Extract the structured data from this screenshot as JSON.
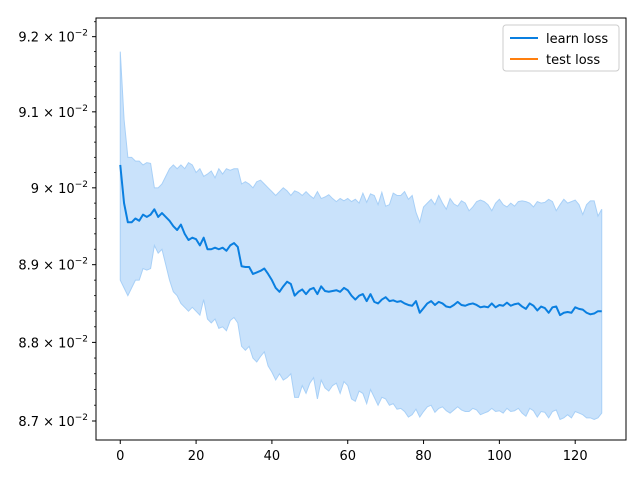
{
  "chart_data": {
    "type": "line",
    "title": "",
    "xlabel": "",
    "ylabel": "",
    "xlim": [
      -6.4,
      133.4
    ],
    "ylim": [
      0.08676,
      0.09225
    ],
    "xticks": [
      0,
      20,
      40,
      60,
      80,
      100,
      120
    ],
    "xtick_labels": [
      "0",
      "20",
      "40",
      "60",
      "80",
      "100",
      "120"
    ],
    "yticks": [
      {
        "value": 0.087,
        "mantissa": "8.7",
        "base": "10",
        "exp": "−2"
      },
      {
        "value": 0.088,
        "mantissa": "8.8",
        "base": "10",
        "exp": "−2"
      },
      {
        "value": 0.089,
        "mantissa": "8.9",
        "base": "10",
        "exp": "−2"
      },
      {
        "value": 0.09,
        "mantissa": "9",
        "base": "10",
        "exp": "−2"
      },
      {
        "value": 0.091,
        "mantissa": "9.1",
        "base": "10",
        "exp": "−2"
      },
      {
        "value": 0.092,
        "mantissa": "9.2",
        "base": "10",
        "exp": "−2"
      }
    ],
    "grid": false,
    "legend": {
      "placement": "top-right",
      "entries": [
        {
          "label": "learn loss",
          "color": "#0a7fe0"
        },
        {
          "label": "test loss",
          "color": "#ff7f0e"
        }
      ]
    },
    "series": [
      {
        "name": "learn loss",
        "color": "#0a7fe0",
        "band_color": "#c9e2fb",
        "band_edge_color": "#a8d0f7",
        "x": [
          0,
          1,
          2,
          3,
          4,
          5,
          6,
          7,
          8,
          9,
          10,
          11,
          12,
          13,
          14,
          15,
          16,
          17,
          18,
          19,
          20,
          21,
          22,
          23,
          24,
          25,
          26,
          27,
          28,
          29,
          30,
          31,
          32,
          33,
          34,
          35,
          36,
          37,
          38,
          39,
          40,
          41,
          42,
          43,
          44,
          45,
          46,
          47,
          48,
          49,
          50,
          51,
          52,
          53,
          54,
          55,
          56,
          57,
          58,
          59,
          60,
          61,
          62,
          63,
          64,
          65,
          66,
          67,
          68,
          69,
          70,
          71,
          72,
          73,
          74,
          75,
          76,
          77,
          78,
          79,
          80,
          81,
          82,
          83,
          84,
          85,
          86,
          87,
          88,
          89,
          90,
          91,
          92,
          93,
          94,
          95,
          96,
          97,
          98,
          99,
          100,
          101,
          102,
          103,
          104,
          105,
          106,
          107,
          108,
          109,
          110,
          111,
          112,
          113,
          114,
          115,
          116,
          117,
          118,
          119,
          120,
          121,
          122,
          123,
          124,
          125,
          126,
          127
        ],
        "y": [
          0.0903,
          0.0898,
          0.08955,
          0.08955,
          0.0896,
          0.08957,
          0.08965,
          0.08962,
          0.08965,
          0.08972,
          0.08962,
          0.08967,
          0.08962,
          0.08957,
          0.0895,
          0.08945,
          0.08952,
          0.0894,
          0.08932,
          0.08935,
          0.08933,
          0.08925,
          0.08935,
          0.0892,
          0.0892,
          0.08922,
          0.0892,
          0.08922,
          0.08918,
          0.08925,
          0.08928,
          0.08923,
          0.08898,
          0.08897,
          0.08897,
          0.08888,
          0.0889,
          0.08892,
          0.08895,
          0.08888,
          0.0888,
          0.0887,
          0.08865,
          0.08872,
          0.08878,
          0.08875,
          0.0886,
          0.08865,
          0.08868,
          0.08862,
          0.08868,
          0.0887,
          0.08862,
          0.08872,
          0.08866,
          0.08865,
          0.08866,
          0.08867,
          0.08865,
          0.0887,
          0.08867,
          0.0886,
          0.08855,
          0.0886,
          0.08862,
          0.08853,
          0.08862,
          0.08852,
          0.0885,
          0.08855,
          0.08858,
          0.08853,
          0.08854,
          0.08852,
          0.08853,
          0.0885,
          0.08848,
          0.08847,
          0.08853,
          0.08838,
          0.08844,
          0.0885,
          0.08853,
          0.08848,
          0.08852,
          0.0885,
          0.08846,
          0.08845,
          0.08848,
          0.08852,
          0.08848,
          0.08847,
          0.08849,
          0.0885,
          0.08848,
          0.08845,
          0.08846,
          0.08845,
          0.0885,
          0.08845,
          0.08848,
          0.08847,
          0.08851,
          0.08847,
          0.08849,
          0.0885,
          0.08846,
          0.08843,
          0.0885,
          0.08847,
          0.08841,
          0.08846,
          0.08844,
          0.08838,
          0.08845,
          0.08846,
          0.08835,
          0.08838,
          0.08839,
          0.08838,
          0.08845,
          0.08843,
          0.08842,
          0.08838,
          0.08836,
          0.08837,
          0.0884,
          0.0884
        ],
        "y_upper": [
          0.0918,
          0.0909,
          0.0904,
          0.0904,
          0.09035,
          0.09035,
          0.0903,
          0.09033,
          0.09032,
          0.09,
          0.09,
          0.09005,
          0.09015,
          0.09025,
          0.0903,
          0.09025,
          0.0903,
          0.09025,
          0.09033,
          0.0903,
          0.0902,
          0.09025,
          0.09015,
          0.09018,
          0.09022,
          0.09013,
          0.09025,
          0.09018,
          0.09025,
          0.09023,
          0.09025,
          0.09025,
          0.09005,
          0.09008,
          0.09005,
          0.09,
          0.09008,
          0.0901,
          0.09005,
          0.09,
          0.08995,
          0.0899,
          0.08995,
          0.09,
          0.08996,
          0.0899,
          0.08996,
          0.08994,
          0.0899,
          0.08995,
          0.0899,
          0.08986,
          0.08995,
          0.08986,
          0.08988,
          0.08991,
          0.08986,
          0.08982,
          0.08986,
          0.08983,
          0.08986,
          0.08982,
          0.08985,
          0.0898,
          0.08993,
          0.08981,
          0.08992,
          0.0899,
          0.08978,
          0.08994,
          0.08976,
          0.08978,
          0.08993,
          0.0899,
          0.0899,
          0.08995,
          0.08985,
          0.0899,
          0.08968,
          0.08955,
          0.08975,
          0.0898,
          0.08985,
          0.08978,
          0.0899,
          0.0898,
          0.08972,
          0.08986,
          0.08979,
          0.08976,
          0.08983,
          0.0898,
          0.0897,
          0.08975,
          0.08982,
          0.08984,
          0.08982,
          0.08978,
          0.0897,
          0.0898,
          0.08985,
          0.08978,
          0.08975,
          0.0898,
          0.08976,
          0.08982,
          0.08983,
          0.08982,
          0.0898,
          0.08975,
          0.08982,
          0.0898,
          0.08981,
          0.08985,
          0.08982,
          0.0897,
          0.08978,
          0.08985,
          0.0898,
          0.08982,
          0.08984,
          0.08978,
          0.08965,
          0.08978,
          0.08983,
          0.08983,
          0.08963,
          0.08972
        ],
        "y_lower": [
          0.0888,
          0.0887,
          0.0886,
          0.0887,
          0.0888,
          0.0888,
          0.08895,
          0.08893,
          0.08895,
          0.08925,
          0.08915,
          0.0892,
          0.089,
          0.0888,
          0.08865,
          0.0886,
          0.0885,
          0.08845,
          0.0884,
          0.08845,
          0.0884,
          0.08835,
          0.08855,
          0.0883,
          0.08825,
          0.0883,
          0.08818,
          0.0882,
          0.08815,
          0.08828,
          0.08832,
          0.08825,
          0.08795,
          0.0879,
          0.08795,
          0.0878,
          0.08775,
          0.08782,
          0.08788,
          0.0877,
          0.08762,
          0.08752,
          0.0876,
          0.08752,
          0.08755,
          0.0876,
          0.0873,
          0.0873,
          0.08745,
          0.08735,
          0.08748,
          0.08755,
          0.08728,
          0.08752,
          0.08742,
          0.08738,
          0.08745,
          0.08748,
          0.08735,
          0.0875,
          0.08745,
          0.08728,
          0.08725,
          0.08738,
          0.08735,
          0.08722,
          0.0874,
          0.0873,
          0.0872,
          0.0873,
          0.08728,
          0.0872,
          0.08722,
          0.08715,
          0.08716,
          0.08712,
          0.08705,
          0.08708,
          0.08715,
          0.08705,
          0.08712,
          0.08718,
          0.0872,
          0.08711,
          0.08716,
          0.08718,
          0.08713,
          0.0871,
          0.08714,
          0.08718,
          0.08714,
          0.08712,
          0.08712,
          0.08716,
          0.08714,
          0.08708,
          0.0871,
          0.08712,
          0.08716,
          0.08712,
          0.08713,
          0.0871,
          0.08716,
          0.08712,
          0.08713,
          0.08716,
          0.0871,
          0.08706,
          0.08716,
          0.08713,
          0.08705,
          0.08712,
          0.08711,
          0.08704,
          0.08712,
          0.08714,
          0.08702,
          0.08704,
          0.08708,
          0.08704,
          0.08712,
          0.0871,
          0.08708,
          0.08704,
          0.08704,
          0.08702,
          0.08704,
          0.0871
        ]
      },
      {
        "name": "test loss",
        "color": "#ff7f0e",
        "x": [],
        "y": []
      }
    ]
  }
}
